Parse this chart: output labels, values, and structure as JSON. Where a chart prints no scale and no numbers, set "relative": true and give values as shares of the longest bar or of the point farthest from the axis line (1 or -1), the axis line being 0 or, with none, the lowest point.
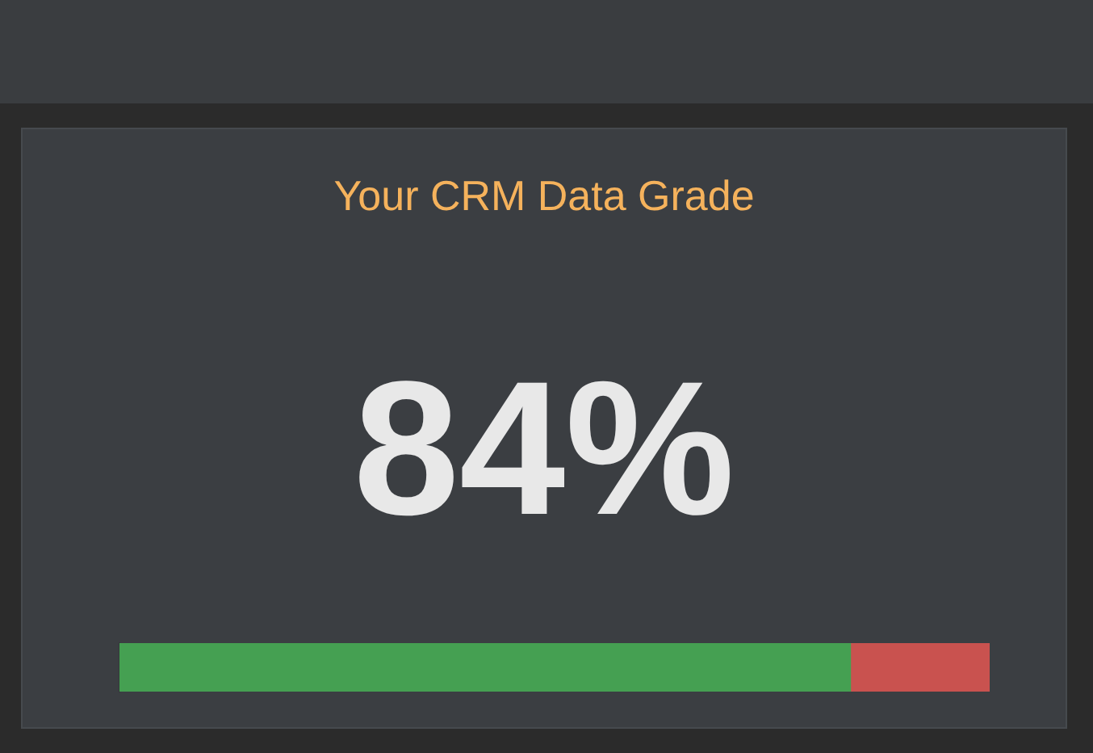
{
  "chart_data": {
    "type": "bar",
    "title": "Your CRM Data Grade",
    "orientation": "horizontal",
    "stacked": true,
    "relative": true,
    "categories": [
      null
    ],
    "legend": false,
    "annotations": [
      "84%"
    ],
    "series": [
      {
        "color": "#45a052",
        "values": [
          0.84
        ]
      },
      {
        "color": "#c9524f",
        "values": [
          0.16
        ]
      }
    ]
  }
}
